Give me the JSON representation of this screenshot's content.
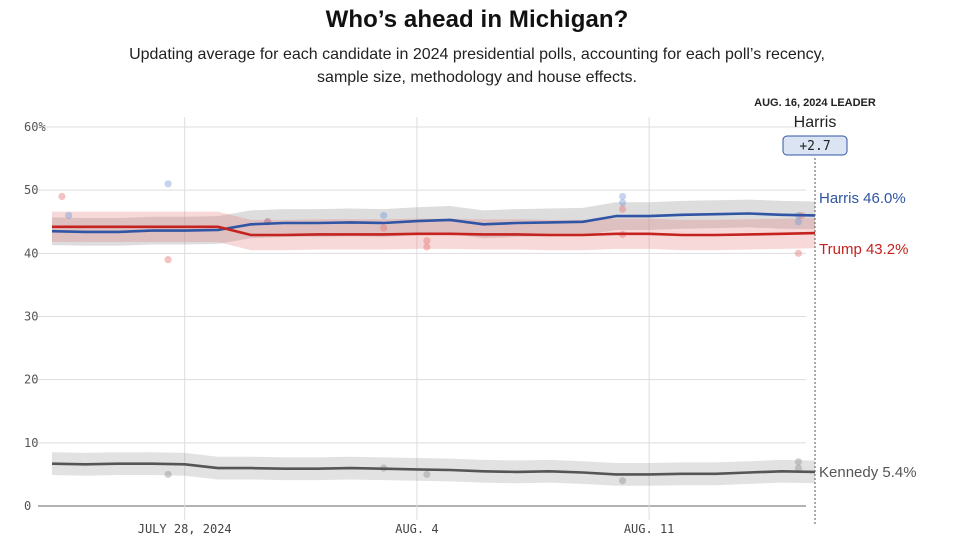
{
  "header": {
    "title": "Who’s ahead in Michigan?",
    "subtitle_line1": "Updating average for each candidate in 2024 presidential polls, accounting for each poll’s recency,",
    "subtitle_line2": "sample size, methodology and house effects."
  },
  "leader": {
    "heading": "AUG. 16, 2024 LEADER",
    "name": "Harris",
    "margin": "+2.7"
  },
  "colors": {
    "harris": "#2f55a4",
    "trump": "#c4231f",
    "kennedy": "#555555",
    "grid": "#dddddd"
  },
  "chart_data": {
    "type": "line",
    "title": "Who’s ahead in Michigan?",
    "ylim": [
      0,
      60
    ],
    "y_ticks": [
      0,
      10,
      20,
      30,
      40,
      50,
      60
    ],
    "y_tick_labels": [
      "0",
      "10",
      "20",
      "30",
      "40",
      "50",
      "60%"
    ],
    "x_ticks": [
      "JULY 28, 2024",
      "AUG. 4",
      "AUG. 11"
    ],
    "x_dates": [
      "Jul 24",
      "Jul 25",
      "Jul 26",
      "Jul 27",
      "Jul 28",
      "Jul 29",
      "Jul 30",
      "Jul 31",
      "Aug 1",
      "Aug 2",
      "Aug 3",
      "Aug 4",
      "Aug 5",
      "Aug 6",
      "Aug 7",
      "Aug 8",
      "Aug 9",
      "Aug 10",
      "Aug 11",
      "Aug 12",
      "Aug 13",
      "Aug 14",
      "Aug 15",
      "Aug 16"
    ],
    "series": [
      {
        "name": "Harris",
        "end_label": "Harris 46.0%",
        "values": [
          43.5,
          43.4,
          43.4,
          43.6,
          43.6,
          43.7,
          44.6,
          44.8,
          44.8,
          44.9,
          44.8,
          45.1,
          45.3,
          44.6,
          44.8,
          44.9,
          45.0,
          45.9,
          45.9,
          46.1,
          46.2,
          46.3,
          46.1,
          46.0
        ],
        "band": 2.2,
        "polls": [
          [
            0.5,
            46
          ],
          [
            3.5,
            51
          ],
          [
            6.5,
            45
          ],
          [
            10,
            46
          ],
          [
            17.2,
            49
          ],
          [
            17.2,
            48
          ],
          [
            22.5,
            46
          ],
          [
            22.5,
            45
          ]
        ]
      },
      {
        "name": "Trump",
        "end_label": "Trump 43.2%",
        "values": [
          44.2,
          44.2,
          44.2,
          44.2,
          44.2,
          44.2,
          42.9,
          42.9,
          43.0,
          43.0,
          43.0,
          43.1,
          43.1,
          43.0,
          43.0,
          42.9,
          42.9,
          43.1,
          43.1,
          42.9,
          42.9,
          43.0,
          43.1,
          43.2
        ],
        "band": 2.4,
        "polls": [
          [
            0.3,
            49
          ],
          [
            3.5,
            39
          ],
          [
            6.5,
            45
          ],
          [
            10,
            44
          ],
          [
            11.3,
            42
          ],
          [
            11.3,
            41
          ],
          [
            17.2,
            47
          ],
          [
            17.2,
            43
          ],
          [
            22.5,
            40
          ],
          [
            22.6,
            46
          ]
        ]
      },
      {
        "name": "Kennedy",
        "end_label": "Kennedy 5.4%",
        "values": [
          6.7,
          6.6,
          6.7,
          6.7,
          6.6,
          6.0,
          6.0,
          5.9,
          5.9,
          6.0,
          5.9,
          5.8,
          5.7,
          5.5,
          5.4,
          5.5,
          5.3,
          5.0,
          5.0,
          5.1,
          5.1,
          5.3,
          5.5,
          5.4
        ],
        "band": 1.8,
        "polls": [
          [
            3.5,
            5
          ],
          [
            10,
            6
          ],
          [
            11.3,
            5
          ],
          [
            17.2,
            4
          ],
          [
            22.5,
            7
          ],
          [
            22.5,
            6
          ]
        ]
      }
    ]
  }
}
